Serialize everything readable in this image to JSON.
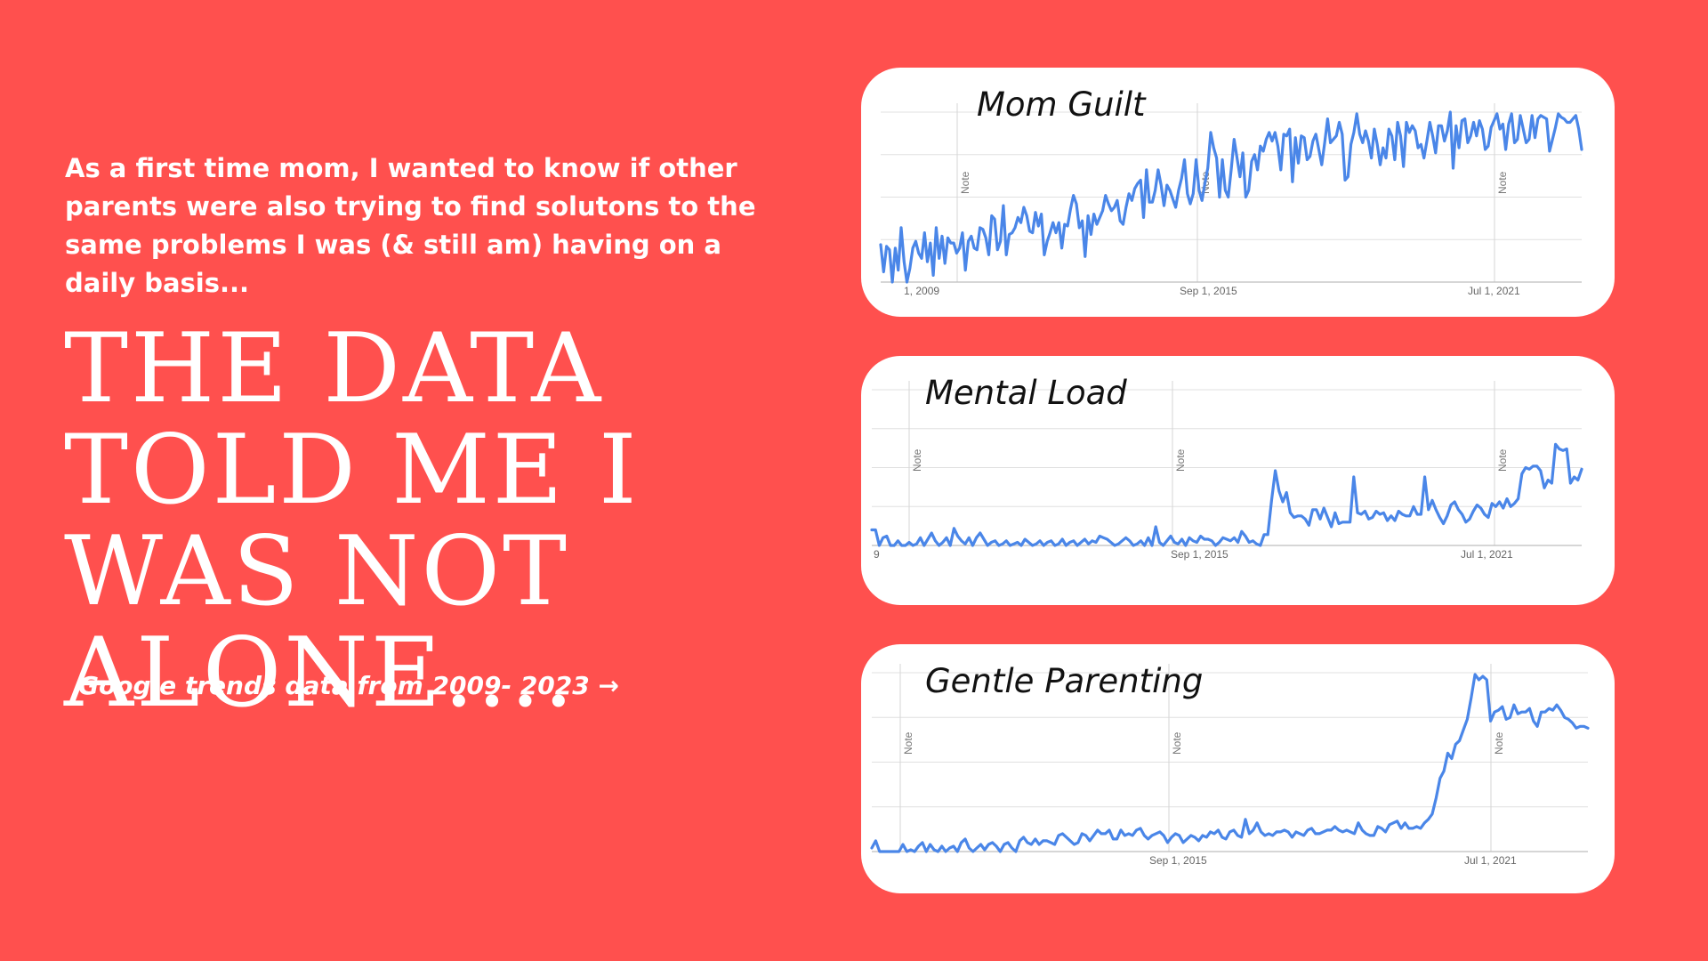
{
  "intro_text": "As a first time mom, I wanted to know if other parents were also trying to find solutons to the same problems I was (& still am) having on a daily basis...",
  "headline": "THE DATA TOLD ME I WAS NOT ALONE....",
  "caption": "Google trends data from 2009- 2023 →",
  "colors": {
    "background": "#FF504E",
    "card": "#ffffff",
    "line": "#4A86E8",
    "grid": "#E0E0E0"
  },
  "chart_data": [
    {
      "type": "line",
      "title": "Mom Guilt",
      "x_tick_labels": [
        "1, 2009",
        "Sep 1, 2015",
        "Jul 1, 2021"
      ],
      "annotations": [
        "Note",
        "Note",
        "Note"
      ],
      "ylim": [
        0,
        100
      ],
      "series": [
        {
          "values": [
            22,
            6,
            21,
            19,
            0,
            20,
            7,
            32,
            12,
            0,
            8,
            20,
            24,
            17,
            14,
            29,
            12,
            23,
            4,
            32,
            14,
            27,
            11,
            26,
            23,
            23,
            17,
            20,
            29,
            7,
            24,
            27,
            20,
            19,
            32,
            31,
            26,
            16,
            39,
            37,
            19,
            24,
            45,
            16,
            28,
            29,
            32,
            38,
            35,
            44,
            39,
            30,
            29,
            41,
            33,
            40,
            16,
            24,
            29,
            35,
            29,
            35,
            20,
            34,
            33,
            43,
            51,
            46,
            32,
            36,
            15,
            39,
            28,
            40,
            34,
            38,
            42,
            51,
            46,
            42,
            44,
            48,
            36,
            34,
            44,
            52,
            48,
            55,
            58,
            60,
            38,
            66,
            47,
            47,
            54,
            66,
            57,
            45,
            57,
            54,
            49,
            44,
            54,
            61,
            72,
            52,
            46,
            52,
            72,
            54,
            48,
            58,
            67,
            88,
            79,
            73,
            50,
            72,
            54,
            50,
            66,
            84,
            73,
            62,
            76,
            50,
            54,
            71,
            75,
            66,
            80,
            77,
            84,
            88,
            83,
            88,
            80,
            66,
            87,
            86,
            90,
            59,
            85,
            70,
            86,
            85,
            72,
            74,
            83,
            87,
            78,
            69,
            82,
            96,
            82,
            84,
            86,
            94,
            87,
            60,
            62,
            81,
            88,
            99,
            87,
            82,
            89,
            83,
            73,
            90,
            81,
            69,
            79,
            73,
            90,
            86,
            72,
            94,
            86,
            68,
            94,
            88,
            92,
            89,
            79,
            81,
            73,
            83,
            94,
            86,
            76,
            92,
            92,
            83,
            89,
            100,
            67,
            92,
            79,
            95,
            96,
            82,
            86,
            94,
            86,
            95,
            90,
            78,
            80,
            91,
            95,
            99,
            90,
            93,
            78,
            93,
            99,
            82,
            84,
            98,
            90,
            82,
            84,
            98,
            85,
            96,
            98,
            97,
            96,
            77,
            84,
            91,
            99,
            97,
            96,
            94,
            94,
            96,
            98,
            90,
            78
          ]
        }
      ]
    },
    {
      "type": "line",
      "title": "Mental Load",
      "x_tick_labels": [
        "9",
        "Sep 1, 2015",
        "Jul 1, 2021"
      ],
      "annotations": [
        "Note",
        "Note",
        "Note"
      ],
      "ylim": [
        0,
        100
      ],
      "series": [
        {
          "values": [
            10,
            10,
            0,
            5,
            6,
            0,
            0,
            3,
            0,
            0,
            2,
            0,
            1,
            5,
            0,
            4,
            8,
            3,
            0,
            2,
            5,
            0,
            11,
            6,
            3,
            1,
            5,
            0,
            5,
            8,
            4,
            0,
            2,
            3,
            0,
            1,
            3,
            0,
            1,
            2,
            0,
            4,
            2,
            0,
            1,
            3,
            0,
            2,
            3,
            0,
            1,
            4,
            0,
            2,
            3,
            0,
            2,
            4,
            1,
            3,
            2,
            6,
            5,
            4,
            2,
            0,
            1,
            3,
            5,
            3,
            0,
            1,
            3,
            0,
            5,
            0,
            12,
            2,
            0,
            3,
            6,
            2,
            1,
            4,
            0,
            5,
            3,
            2,
            6,
            4,
            4,
            3,
            0,
            2,
            5,
            4,
            3,
            5,
            2,
            9,
            6,
            2,
            3,
            1,
            0,
            7,
            7,
            29,
            48,
            35,
            28,
            34,
            21,
            18,
            19,
            19,
            17,
            13,
            23,
            23,
            17,
            24,
            18,
            12,
            21,
            14,
            15,
            15,
            15,
            44,
            21,
            20,
            22,
            17,
            18,
            22,
            20,
            21,
            16,
            19,
            16,
            22,
            20,
            19,
            19,
            25,
            20,
            20,
            44,
            23,
            29,
            23,
            18,
            14,
            19,
            26,
            28,
            23,
            20,
            15,
            17,
            22,
            26,
            24,
            20,
            18,
            27,
            25,
            28,
            24,
            30,
            25,
            27,
            30,
            46,
            50,
            49,
            51,
            51,
            48,
            37,
            42,
            40,
            65,
            62,
            61,
            62,
            40,
            44,
            42,
            49
          ]
        }
      ]
    },
    {
      "type": "line",
      "title": "Gentle Parenting",
      "x_tick_labels": [
        "Sep 1, 2015",
        "Jul 1, 2021"
      ],
      "annotations": [
        "Note",
        "Note",
        "Note"
      ],
      "ylim": [
        0,
        100
      ],
      "series": [
        {
          "values": [
            2,
            6,
            0,
            0,
            0,
            0,
            0,
            0,
            4,
            0,
            1,
            0,
            3,
            5,
            0,
            4,
            1,
            0,
            3,
            0,
            2,
            3,
            0,
            5,
            7,
            2,
            0,
            2,
            4,
            1,
            4,
            5,
            3,
            0,
            4,
            5,
            2,
            0,
            6,
            8,
            5,
            4,
            7,
            4,
            6,
            6,
            5,
            4,
            9,
            10,
            8,
            6,
            4,
            5,
            10,
            9,
            6,
            9,
            12,
            10,
            10,
            12,
            7,
            7,
            12,
            9,
            10,
            9,
            12,
            13,
            9,
            7,
            9,
            10,
            11,
            9,
            5,
            8,
            10,
            9,
            5,
            7,
            9,
            8,
            6,
            9,
            8,
            11,
            10,
            12,
            8,
            7,
            11,
            12,
            9,
            8,
            18,
            10,
            12,
            16,
            11,
            9,
            10,
            9,
            11,
            11,
            12,
            11,
            8,
            11,
            10,
            9,
            12,
            13,
            10,
            10,
            11,
            12,
            12,
            14,
            12,
            11,
            12,
            11,
            10,
            16,
            12,
            10,
            9,
            9,
            14,
            13,
            11,
            15,
            16,
            17,
            13,
            16,
            13,
            13,
            14,
            13,
            16,
            18,
            21,
            30,
            41,
            45,
            55,
            52,
            60,
            62,
            68,
            74,
            86,
            99,
            96,
            98,
            96,
            73,
            78,
            79,
            81,
            74,
            75,
            82,
            77,
            78,
            78,
            80,
            73,
            70,
            78,
            78,
            80,
            79,
            82,
            79,
            75,
            74,
            72,
            69,
            70,
            70,
            69
          ]
        }
      ]
    }
  ]
}
